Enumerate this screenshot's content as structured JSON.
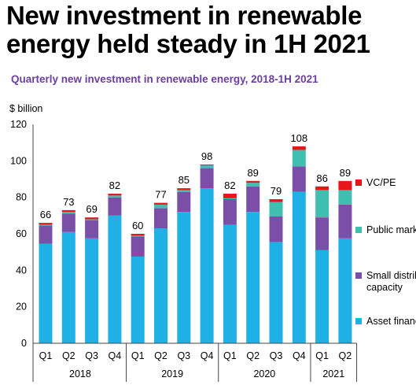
{
  "headline": "New investment in renewable energy held steady in 1H 2021",
  "chart_data": {
    "type": "bar",
    "stacked": true,
    "title": "Quarterly new investment in renewable energy, 2018-1H 2021",
    "ylabel": "$ billion",
    "ylim": [
      0,
      120
    ],
    "yticks": [
      0,
      20,
      40,
      60,
      80,
      100,
      120
    ],
    "grid": false,
    "legend_position": "right",
    "categories": [
      "Q1",
      "Q2",
      "Q3",
      "Q4",
      "Q1",
      "Q2",
      "Q3",
      "Q4",
      "Q1",
      "Q2",
      "Q3",
      "Q4",
      "Q1",
      "Q2"
    ],
    "groups": [
      {
        "label": "2018",
        "count": 4
      },
      {
        "label": "2019",
        "count": 4
      },
      {
        "label": "2020",
        "count": 4
      },
      {
        "label": "2021",
        "count": 2
      }
    ],
    "totals": [
      66,
      73,
      69,
      82,
      60,
      77,
      85,
      98,
      82,
      89,
      79,
      108,
      86,
      89
    ],
    "series": [
      {
        "name": "Asset finance",
        "color": "#1fb0e6",
        "values": [
          54.5,
          61,
          57.5,
          70,
          47.5,
          63,
          72,
          85,
          65,
          72,
          55.5,
          83,
          51,
          57.5
        ]
      },
      {
        "name": "Small distributed capacity",
        "color": "#7b4fa8",
        "values": [
          10,
          10,
          10,
          10,
          11,
          11,
          11,
          11,
          14,
          14,
          14,
          14,
          18,
          18.5
        ]
      },
      {
        "name": "Public markets",
        "color": "#3fbfb0",
        "values": [
          0.5,
          1,
          0.5,
          1,
          0.5,
          2,
          1,
          1.5,
          0.5,
          2,
          8,
          9,
          15,
          8
        ]
      },
      {
        "name": "VC/PE",
        "color": "#e8151b",
        "values": [
          1,
          1,
          1,
          1,
          1,
          1,
          1,
          0.5,
          2.5,
          1,
          1.5,
          2,
          2,
          5
        ]
      }
    ],
    "legend_order": [
      "VC/PE",
      "Public markets",
      "Small distributed capacity",
      "Asset finance"
    ]
  }
}
